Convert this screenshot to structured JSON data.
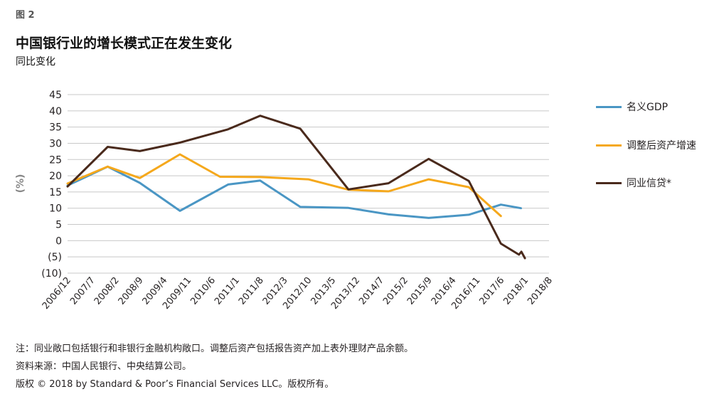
{
  "figure_label": "图 2",
  "title": "中国银行业的增长模式正在发生变化",
  "subtitle": "同比变化",
  "notes": [
    "注：同业敞口包括银行和非银行金融机构敞口。调整后资产包括报告资产加上表外理财产品余额。",
    "资料来源：中国人民银行、中央结算公司。",
    "版权 © 2018 by Standard & Poor’s Financial Services LLC。版权所有。"
  ],
  "chart_data": {
    "type": "line",
    "ylabel": "(%)",
    "xlabel": "",
    "ylim": [
      -10,
      45
    ],
    "yticks": [
      -10,
      -5,
      0,
      5,
      10,
      15,
      20,
      25,
      30,
      35,
      40,
      45
    ],
    "ytick_labels": [
      "(10)",
      "(5)",
      "0",
      "5",
      "10",
      "15",
      "20",
      "25",
      "30",
      "35",
      "40",
      "45"
    ],
    "categories": [
      "2006/12",
      "2007/7",
      "2008/2",
      "2008/9",
      "2009/4",
      "2009/11",
      "2010/6",
      "2011/1",
      "2011/8",
      "2012/3",
      "2012/10",
      "2013/5",
      "2013/12",
      "2014/7",
      "2015/2",
      "2015/9",
      "2016/4",
      "2016/11",
      "2017/6",
      "2018/1",
      "2018/8"
    ],
    "grid": "horizontal",
    "legend_position": "right",
    "series": [
      {
        "name": "名义GDP",
        "color": "#4a96c4",
        "points": [
          [
            0,
            17.0
          ],
          [
            1.667,
            22.8
          ],
          [
            3.0,
            17.8
          ],
          [
            4.667,
            9.2
          ],
          [
            6.667,
            17.3
          ],
          [
            8.0,
            18.5
          ],
          [
            9.667,
            10.4
          ],
          [
            11.667,
            10.1
          ],
          [
            13.333,
            8.1
          ],
          [
            15.0,
            7.0
          ],
          [
            16.667,
            8.0
          ],
          [
            18.0,
            11.1
          ],
          [
            18.833,
            10.0
          ]
        ]
      },
      {
        "name": "调整后资产增速",
        "color": "#f5a81c",
        "points": [
          [
            0,
            17.6
          ],
          [
            1.667,
            22.8
          ],
          [
            3.0,
            19.3
          ],
          [
            4.667,
            26.6
          ],
          [
            6.333,
            19.7
          ],
          [
            8.0,
            19.6
          ],
          [
            10.0,
            18.9
          ],
          [
            11.667,
            15.7
          ],
          [
            13.333,
            15.2
          ],
          [
            15.0,
            18.9
          ],
          [
            16.667,
            16.5
          ],
          [
            18.0,
            7.6
          ]
        ]
      },
      {
        "name": "同业信贷*",
        "color": "#4a2a1c",
        "points": [
          [
            0,
            16.7
          ],
          [
            1.667,
            28.9
          ],
          [
            3.0,
            27.6
          ],
          [
            4.667,
            30.2
          ],
          [
            6.667,
            34.3
          ],
          [
            8.0,
            38.5
          ],
          [
            9.667,
            34.5
          ],
          [
            11.667,
            15.8
          ],
          [
            13.333,
            17.7
          ],
          [
            15.0,
            25.2
          ],
          [
            16.667,
            18.4
          ],
          [
            18.0,
            -0.9
          ],
          [
            18.75,
            -4.3
          ],
          [
            18.85,
            -3.4
          ],
          [
            19.0,
            -5.4
          ]
        ]
      }
    ]
  }
}
